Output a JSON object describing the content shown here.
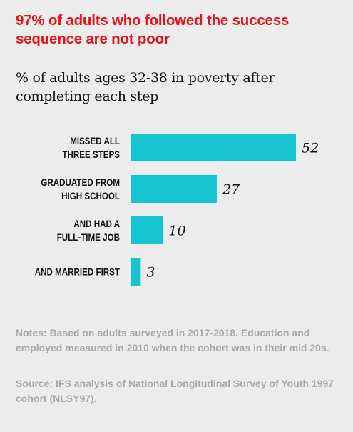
{
  "title": "97% of adults who followed the success sequence are not poor",
  "subtitle": "% of adults ages 32-38 in poverty after completing each step",
  "notes": "Notes: Based on adults surveyed in 2017-2018. Education and employed measured in 2010 when the cohort was in their mid 20s.",
  "source": "Source: IFS analysis of National Longitudinal Survey of Youth 1997 cohort (NLSY97).",
  "colors": {
    "bar": "#15c4d0",
    "title": "#e8131a",
    "background": "#ececec",
    "notes": "#a9a9a9"
  },
  "chart_data": {
    "type": "bar",
    "orientation": "horizontal",
    "categories": [
      [
        "MISSED ALL",
        "THREE STEPS"
      ],
      [
        "GRADUATED FROM",
        "HIGH SCHOOL"
      ],
      [
        "AND HAD A",
        "FULL-TIME JOB"
      ],
      [
        "AND MARRIED FIRST"
      ]
    ],
    "values": [
      52,
      27,
      10,
      3
    ],
    "data_labels": [
      "52",
      "27",
      "10",
      "3"
    ],
    "xlim": [
      0,
      52
    ],
    "grid": false,
    "legend": "none"
  }
}
